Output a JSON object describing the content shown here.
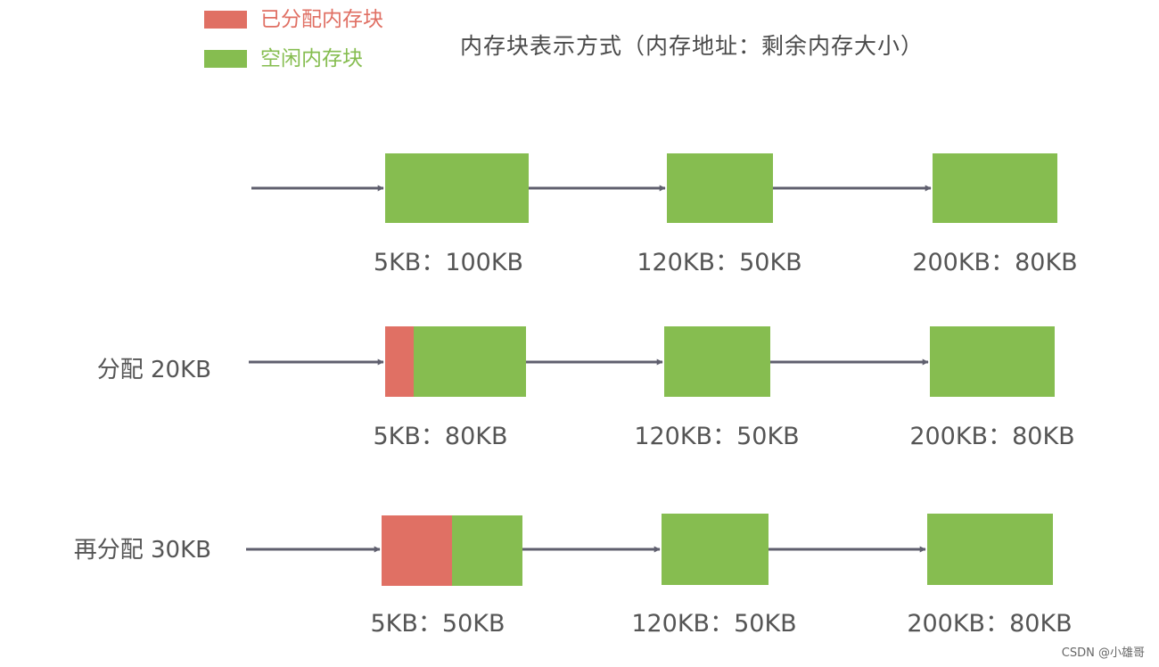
{
  "colors": {
    "allocated": "#e07064",
    "free": "#86bd50",
    "arrow": "#5f5f6e",
    "allocated_text": "#e07064",
    "free_text": "#86bd50"
  },
  "legend": {
    "allocated_label": "已分配内存块",
    "free_label": "空闲内存块"
  },
  "title": "内存块表示方式（内存地址：剩余内存大小）",
  "rows": [
    {
      "label": "",
      "blocks": [
        {
          "label": "5KB：100KB",
          "allocated_kb": 0,
          "free_kb": 100
        },
        {
          "label": "120KB：50KB",
          "allocated_kb": 0,
          "free_kb": 50
        },
        {
          "label": "200KB：80KB",
          "allocated_kb": 0,
          "free_kb": 80
        }
      ]
    },
    {
      "label": "分配 20KB",
      "blocks": [
        {
          "label": "5KB：80KB",
          "allocated_kb": 20,
          "free_kb": 80
        },
        {
          "label": "120KB：50KB",
          "allocated_kb": 0,
          "free_kb": 50
        },
        {
          "label": "200KB：80KB",
          "allocated_kb": 0,
          "free_kb": 80
        }
      ]
    },
    {
      "label": "再分配 30KB",
      "blocks": [
        {
          "label": "5KB：50KB",
          "allocated_kb": 50,
          "free_kb": 50
        },
        {
          "label": "120KB：50KB",
          "allocated_kb": 0,
          "free_kb": 50
        },
        {
          "label": "200KB：80KB",
          "allocated_kb": 0,
          "free_kb": 80
        }
      ]
    }
  ],
  "watermark": "CSDN @小雄哥"
}
